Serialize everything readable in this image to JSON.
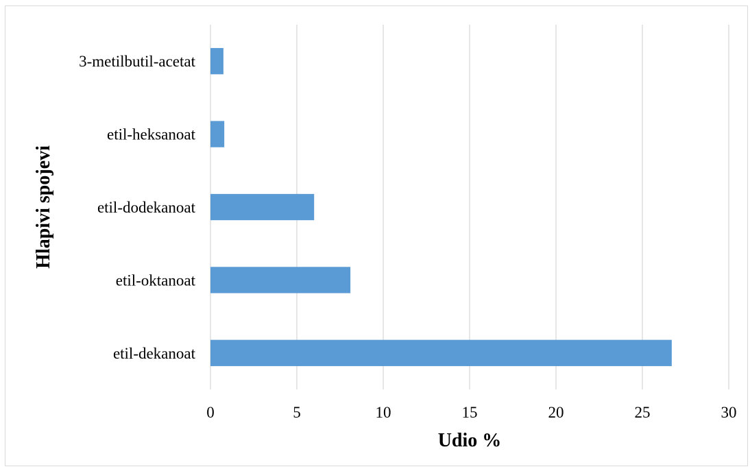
{
  "chart_data": {
    "type": "bar",
    "orientation": "horizontal",
    "categories": [
      "etil-dekanoat",
      "etil-oktanoat",
      "etil-dodekanoat",
      "etil-heksanoat",
      "3-metilbutil-acetat"
    ],
    "values": [
      26.7,
      8.1,
      6.0,
      0.8,
      0.75
    ],
    "xlabel": "Udio %",
    "ylabel": "Hlapivi spojevi",
    "xlim": [
      0,
      30
    ],
    "xticks": [
      "0",
      "5",
      "10",
      "15",
      "20",
      "25",
      "30"
    ],
    "grid": "vertical",
    "bar_color": "#5b9bd5",
    "gridline_color": "#d9d9d9"
  }
}
